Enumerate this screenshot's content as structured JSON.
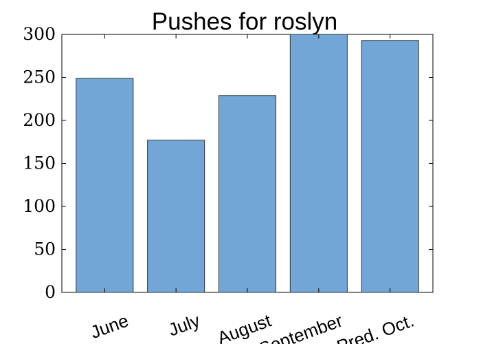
{
  "chart_data": {
    "type": "bar",
    "title": "Pushes for roslyn",
    "xlabel": "",
    "ylabel": "",
    "categories": [
      "June",
      "July",
      "August",
      "September",
      "Pred. Oct."
    ],
    "values": [
      249,
      177,
      229,
      300,
      293
    ],
    "ylim": [
      0,
      300
    ],
    "yticks": [
      0,
      50,
      100,
      150,
      200,
      250,
      300
    ],
    "grid": false,
    "legend": "none",
    "bar_color": "#72a6d6",
    "edge_color": "#333333"
  }
}
